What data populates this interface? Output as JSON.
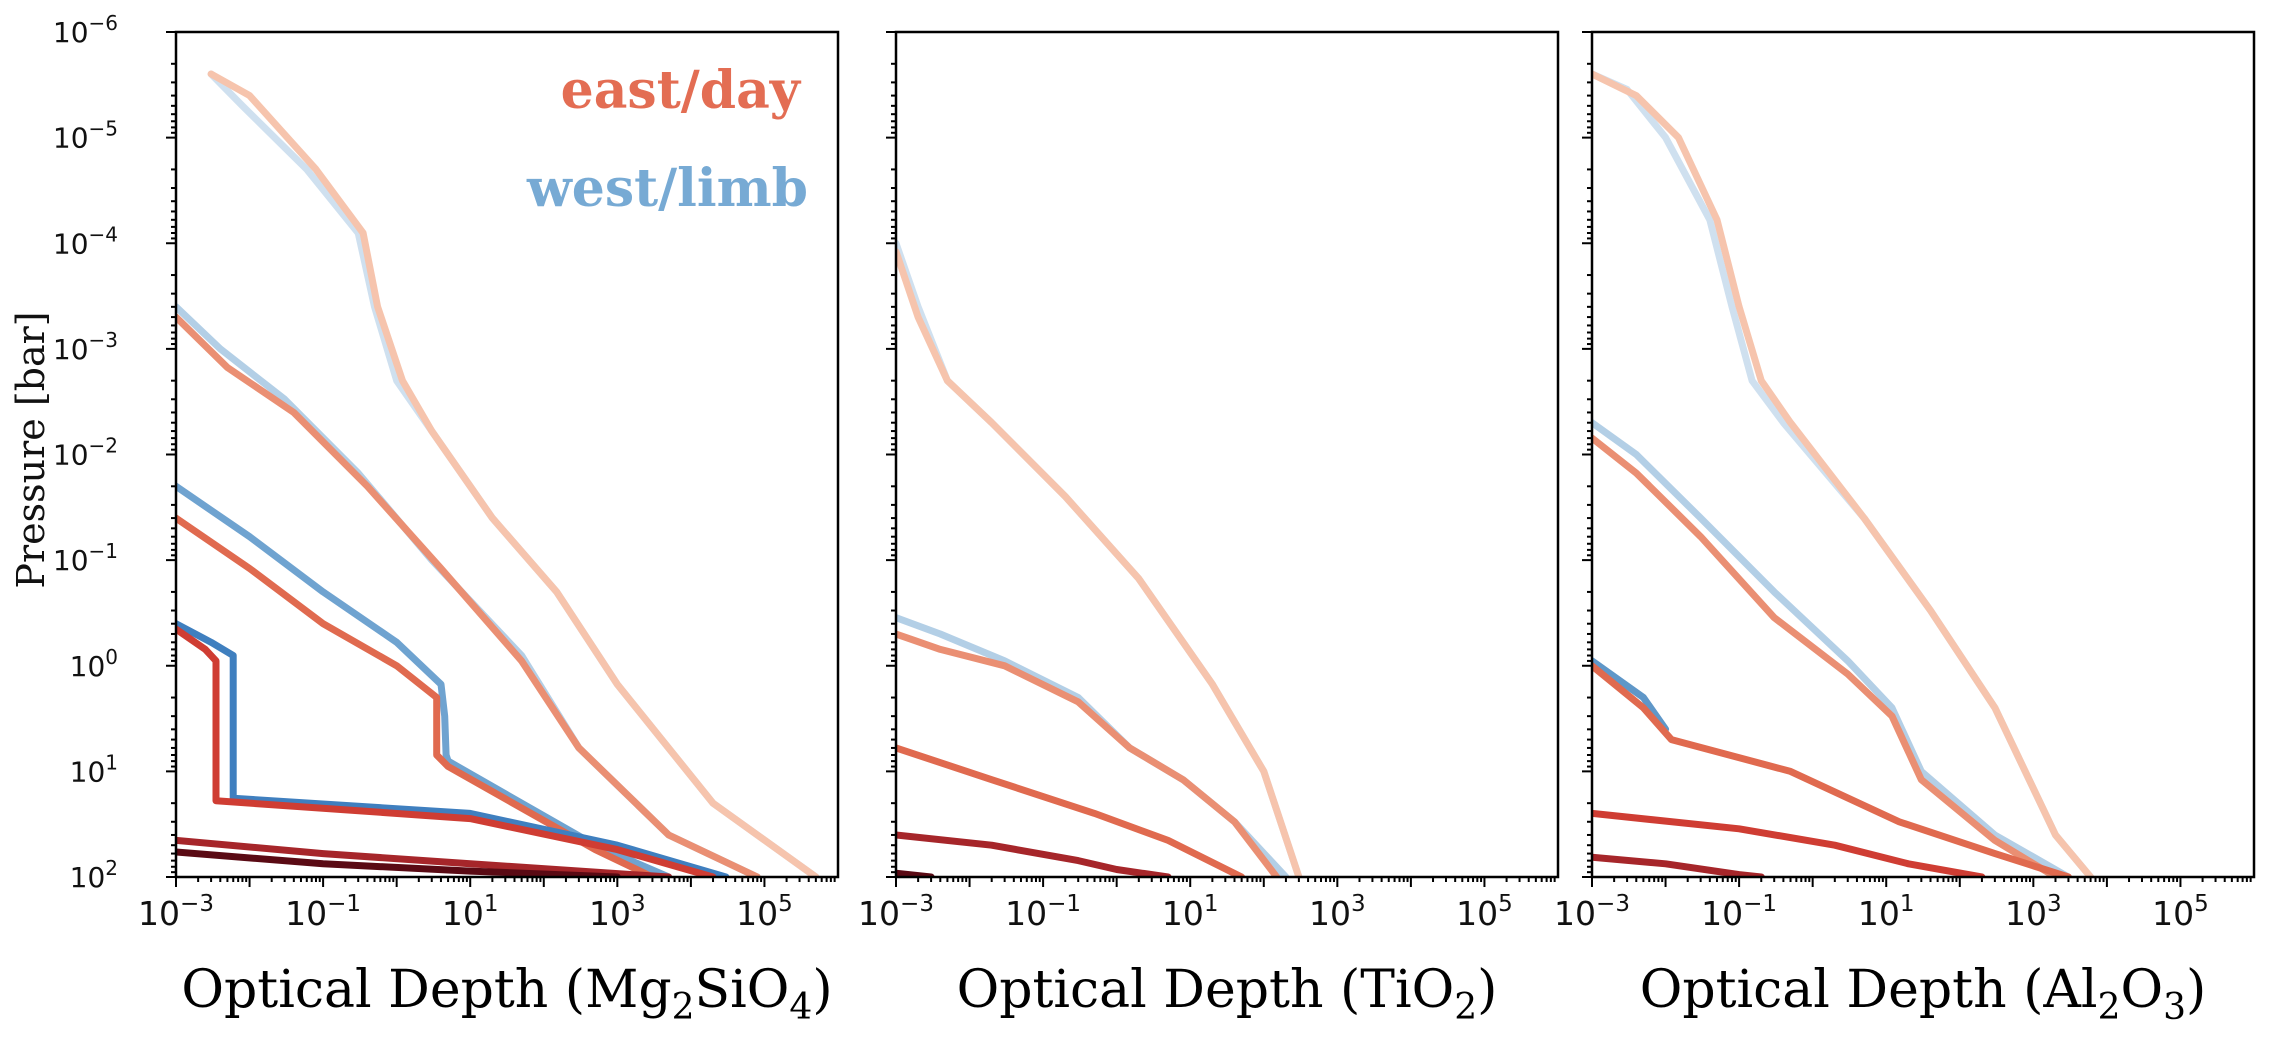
{
  "chart_data": {
    "type": "line",
    "ylabel": "Pressure [bar]",
    "x_scale": "log",
    "y_scale": "log",
    "xlim": [
      0.001,
      1000000
    ],
    "ylim": [
      100,
      1e-06
    ],
    "x_tick_labels": [
      {
        "value": 0.001,
        "base": "10",
        "exp": "−3"
      },
      {
        "value": 0.1,
        "base": "10",
        "exp": "−1"
      },
      {
        "value": 10,
        "base": "10",
        "exp": "1"
      },
      {
        "value": 1000,
        "base": "10",
        "exp": "3"
      },
      {
        "value": 100000,
        "base": "10",
        "exp": "5"
      }
    ],
    "y_tick_labels": [
      {
        "value": 1e-06,
        "base": "10",
        "exp": "−6"
      },
      {
        "value": 1e-05,
        "base": "10",
        "exp": "−5"
      },
      {
        "value": 0.0001,
        "base": "10",
        "exp": "−4"
      },
      {
        "value": 0.001,
        "base": "10",
        "exp": "−3"
      },
      {
        "value": 0.01,
        "base": "10",
        "exp": "−2"
      },
      {
        "value": 0.1,
        "base": "10",
        "exp": "−1"
      },
      {
        "value": 1,
        "base": "10",
        "exp": "0"
      },
      {
        "value": 10,
        "base": "10",
        "exp": "1"
      },
      {
        "value": 100,
        "base": "10",
        "exp": "2"
      }
    ],
    "legend": [
      {
        "label": "east/day",
        "color": "#e36d53"
      },
      {
        "label": "west/limb",
        "color": "#77aad4"
      }
    ],
    "panels": [
      {
        "xlabel_prefix": "Optical Depth (",
        "formula": [
          {
            "t": "Mg"
          },
          {
            "t": "2",
            "sub": true
          },
          {
            "t": "SiO"
          },
          {
            "t": "4",
            "sub": true
          }
        ],
        "xlabel_suffix": ")",
        "series": [
          {
            "name": "west-1",
            "color": "#cfe0ef",
            "points": [
              [
                0.003,
                2.5e-06
              ],
              [
                0.008,
                5e-06
              ],
              [
                0.06,
                2e-05
              ],
              [
                0.3,
                8e-05
              ],
              [
                0.5,
                0.0004
              ],
              [
                1,
                0.002
              ],
              [
                3,
                0.006
              ],
              [
                20,
                0.04
              ],
              [
                150,
                0.2
              ],
              [
                1000,
                1.5
              ],
              [
                20000,
                20
              ],
              [
                500000,
                100
              ]
            ]
          },
          {
            "name": "east-1",
            "color": "#f6c4ad",
            "points": [
              [
                0.003,
                2.5e-06
              ],
              [
                0.01,
                4e-06
              ],
              [
                0.08,
                2e-05
              ],
              [
                0.35,
                8e-05
              ],
              [
                0.55,
                0.0004
              ],
              [
                1.2,
                0.002
              ],
              [
                3,
                0.006
              ],
              [
                20,
                0.04
              ],
              [
                150,
                0.2
              ],
              [
                1000,
                1.5
              ],
              [
                20000,
                20
              ],
              [
                500000,
                100
              ]
            ]
          },
          {
            "name": "west-2",
            "color": "#b3cfe6",
            "points": [
              [
                0.001,
                0.0004
              ],
              [
                0.004,
                0.001
              ],
              [
                0.03,
                0.003
              ],
              [
                0.3,
                0.015
              ],
              [
                3,
                0.1
              ],
              [
                50,
                0.8
              ],
              [
                300,
                6
              ],
              [
                5000,
                40
              ],
              [
                80000,
                100
              ]
            ]
          },
          {
            "name": "east-2",
            "color": "#ea8f73",
            "points": [
              [
                0.001,
                0.0005
              ],
              [
                0.005,
                0.0015
              ],
              [
                0.04,
                0.004
              ],
              [
                0.4,
                0.02
              ],
              [
                4,
                0.12
              ],
              [
                50,
                0.9
              ],
              [
                300,
                6
              ],
              [
                5000,
                40
              ],
              [
                80000,
                100
              ]
            ]
          },
          {
            "name": "west-3",
            "color": "#6fa3d0",
            "points": [
              [
                0.001,
                0.02
              ],
              [
                0.01,
                0.06
              ],
              [
                0.1,
                0.2
              ],
              [
                1,
                0.6
              ],
              [
                4,
                1.5
              ],
              [
                4.5,
                3
              ],
              [
                4.7,
                7
              ],
              [
                5,
                8
              ],
              [
                500,
                50
              ],
              [
                5000,
                100
              ]
            ]
          },
          {
            "name": "east-3",
            "color": "#e06a4f",
            "points": [
              [
                0.001,
                0.04
              ],
              [
                0.01,
                0.12
              ],
              [
                0.1,
                0.4
              ],
              [
                1,
                1
              ],
              [
                3.5,
                2
              ],
              [
                3.5,
                7
              ],
              [
                5,
                9
              ],
              [
                500,
                55
              ],
              [
                3000,
                100
              ]
            ]
          },
          {
            "name": "west-4",
            "color": "#3f7fbf",
            "points": [
              [
                0.001,
                0.4
              ],
              [
                0.003,
                0.6
              ],
              [
                0.006,
                0.8
              ],
              [
                0.006,
                18
              ],
              [
                10,
                25
              ],
              [
                1000,
                50
              ],
              [
                30000,
                100
              ]
            ]
          },
          {
            "name": "east-4",
            "color": "#cf3d33",
            "points": [
              [
                0.001,
                0.45
              ],
              [
                0.0025,
                0.7
              ],
              [
                0.0035,
                0.9
              ],
              [
                0.0035,
                19
              ],
              [
                10,
                28
              ],
              [
                1000,
                55
              ],
              [
                20000,
                100
              ]
            ]
          },
          {
            "name": "east-5",
            "color": "#a6262a",
            "points": [
              [
                0.001,
                45
              ],
              [
                0.1,
                60
              ],
              [
                10,
                75
              ],
              [
                5000,
                100
              ]
            ]
          },
          {
            "name": "east-6",
            "color": "#5a0a14",
            "points": [
              [
                0.001,
                58
              ],
              [
                0.1,
                75
              ],
              [
                10,
                88
              ],
              [
                1000,
                100
              ]
            ]
          }
        ]
      },
      {
        "xlabel_prefix": "Optical Depth (",
        "formula": [
          {
            "t": "TiO"
          },
          {
            "t": "2",
            "sub": true
          }
        ],
        "xlabel_suffix": ")",
        "series": [
          {
            "name": "west-1",
            "color": "#cfe0ef",
            "points": [
              [
                0.001,
                0.0001
              ],
              [
                0.002,
                0.0004
              ],
              [
                0.005,
                0.002
              ],
              [
                0.02,
                0.005
              ],
              [
                0.2,
                0.025
              ],
              [
                2,
                0.15
              ],
              [
                20,
                1.5
              ],
              [
                100,
                10
              ],
              [
                300,
                100
              ]
            ]
          },
          {
            "name": "east-1",
            "color": "#f6c4ad",
            "points": [
              [
                0.001,
                0.00012
              ],
              [
                0.002,
                0.0005
              ],
              [
                0.005,
                0.002
              ],
              [
                0.02,
                0.005
              ],
              [
                0.2,
                0.025
              ],
              [
                2,
                0.15
              ],
              [
                20,
                1.5
              ],
              [
                100,
                10
              ],
              [
                300,
                100
              ]
            ]
          },
          {
            "name": "west-2",
            "color": "#b3cfe6",
            "points": [
              [
                0.001,
                0.35
              ],
              [
                0.004,
                0.5
              ],
              [
                0.03,
                0.9
              ],
              [
                0.3,
                2
              ],
              [
                1.5,
                6
              ],
              [
                8,
                12
              ],
              [
                40,
                30
              ],
              [
                200,
                100
              ]
            ]
          },
          {
            "name": "east-2",
            "color": "#ea8f73",
            "points": [
              [
                0.001,
                0.5
              ],
              [
                0.004,
                0.7
              ],
              [
                0.03,
                1
              ],
              [
                0.3,
                2.2
              ],
              [
                1.5,
                6
              ],
              [
                8,
                12
              ],
              [
                40,
                30
              ],
              [
                150,
                100
              ]
            ]
          },
          {
            "name": "east-3",
            "color": "#e06a4f",
            "points": [
              [
                0.001,
                6
              ],
              [
                0.02,
                12
              ],
              [
                0.5,
                25
              ],
              [
                5,
                45
              ],
              [
                50,
                100
              ]
            ]
          },
          {
            "name": "east-5",
            "color": "#a6262a",
            "points": [
              [
                0.001,
                40
              ],
              [
                0.02,
                50
              ],
              [
                0.3,
                70
              ],
              [
                1,
                85
              ],
              [
                5,
                100
              ]
            ]
          },
          {
            "name": "east-6",
            "color": "#5a0a14",
            "points": [
              [
                0.001,
                92
              ],
              [
                0.003,
                100
              ]
            ]
          }
        ]
      },
      {
        "xlabel_prefix": "Optical Depth (",
        "formula": [
          {
            "t": "Al"
          },
          {
            "t": "2",
            "sub": true
          },
          {
            "t": "O"
          },
          {
            "t": "3",
            "sub": true
          }
        ],
        "xlabel_suffix": ")",
        "series": [
          {
            "name": "west-1",
            "color": "#cfe0ef",
            "points": [
              [
                0.001,
                2.5e-06
              ],
              [
                0.003,
                3.5e-06
              ],
              [
                0.01,
                1e-05
              ],
              [
                0.04,
                6e-05
              ],
              [
                0.08,
                0.0004
              ],
              [
                0.15,
                0.002
              ],
              [
                0.4,
                0.005
              ],
              [
                5,
                0.04
              ],
              [
                40,
                0.3
              ],
              [
                300,
                2.5
              ],
              [
                2000,
                40
              ],
              [
                6000,
                100
              ]
            ]
          },
          {
            "name": "east-1",
            "color": "#f6c4ad",
            "points": [
              [
                0.001,
                2.5e-06
              ],
              [
                0.004,
                4e-06
              ],
              [
                0.015,
                1e-05
              ],
              [
                0.05,
                6e-05
              ],
              [
                0.1,
                0.0004
              ],
              [
                0.2,
                0.002
              ],
              [
                0.5,
                0.005
              ],
              [
                5,
                0.04
              ],
              [
                40,
                0.3
              ],
              [
                300,
                2.5
              ],
              [
                2000,
                40
              ],
              [
                6000,
                100
              ]
            ]
          },
          {
            "name": "west-2",
            "color": "#b3cfe6",
            "points": [
              [
                0.001,
                0.005
              ],
              [
                0.004,
                0.01
              ],
              [
                0.03,
                0.04
              ],
              [
                0.3,
                0.2
              ],
              [
                3,
                0.9
              ],
              [
                12,
                2.5
              ],
              [
                30,
                10
              ],
              [
                300,
                40
              ],
              [
                3000,
                100
              ]
            ]
          },
          {
            "name": "east-2",
            "color": "#ea8f73",
            "points": [
              [
                0.001,
                0.007
              ],
              [
                0.004,
                0.015
              ],
              [
                0.03,
                0.06
              ],
              [
                0.3,
                0.35
              ],
              [
                3,
                1.2
              ],
              [
                12,
                3
              ],
              [
                30,
                12
              ],
              [
                300,
                45
              ],
              [
                2000,
                100
              ]
            ]
          },
          {
            "name": "west-3",
            "color": "#5f97c8",
            "points": [
              [
                0.001,
                0.9
              ],
              [
                0.005,
                2
              ],
              [
                0.01,
                4
              ]
            ]
          },
          {
            "name": "east-3",
            "color": "#e06a4f",
            "points": [
              [
                0.001,
                1
              ],
              [
                0.005,
                2.5
              ],
              [
                0.012,
                5
              ],
              [
                0.5,
                10
              ],
              [
                15,
                30
              ],
              [
                300,
                60
              ],
              [
                3000,
                100
              ]
            ]
          },
          {
            "name": "east-5",
            "color": "#cf3d33",
            "points": [
              [
                0.001,
                25
              ],
              [
                0.1,
                35
              ],
              [
                2,
                50
              ],
              [
                20,
                75
              ],
              [
                200,
                100
              ]
            ]
          },
          {
            "name": "east-6",
            "color": "#a6262a",
            "points": [
              [
                0.001,
                65
              ],
              [
                0.01,
                75
              ],
              [
                0.1,
                95
              ],
              [
                0.2,
                100
              ]
            ]
          }
        ]
      }
    ]
  }
}
